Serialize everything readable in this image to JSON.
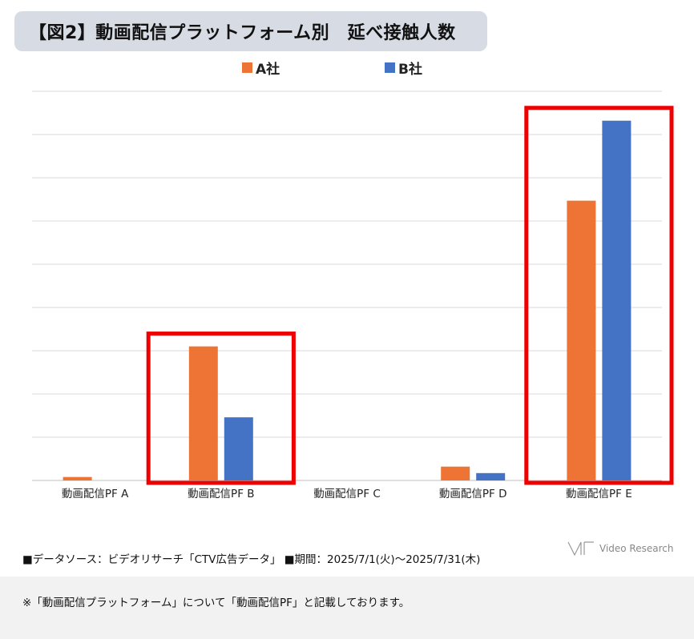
{
  "title": "【図2】動画配信プラットフォーム別　延べ接触人数",
  "colors": {
    "seriesA": "#ed7434",
    "seriesB": "#4472c4",
    "highlight": "#ee0000",
    "grid": "#d9d9d9"
  },
  "chart_data": {
    "type": "bar",
    "title": "【図2】動画配信プラットフォーム別　延べ接触人数",
    "categories": [
      "動画配信PF A",
      "動画配信PF B",
      "動画配信PF C",
      "動画配信PF D",
      "動画配信PF E"
    ],
    "series": [
      {
        "name": "A社",
        "values": [
          0.8,
          31,
          0,
          3.2,
          64.7
        ]
      },
      {
        "name": "B社",
        "values": [
          0,
          14.6,
          0,
          1.7,
          83.2
        ]
      }
    ],
    "ylim": [
      0,
      90
    ],
    "y_gridlines": [
      0,
      10,
      20,
      30,
      40,
      50,
      60,
      70,
      80,
      90
    ],
    "y_tick_labels_shown": false,
    "legend_position": "top-center",
    "highlighted_categories": [
      "動画配信PF B",
      "動画配信PF E"
    ]
  },
  "footer": {
    "line1": "■データソース：ビデオリサーチ「CTV広告データ」 ■期間：2025/7/1(火)～2025/7/31(木)",
    "line2": "※「動画配信プラットフォーム」について「動画配信PF」と記載しております。"
  },
  "brand": {
    "name": "Video Research",
    "logo_icon": "vr-logo-icon"
  }
}
